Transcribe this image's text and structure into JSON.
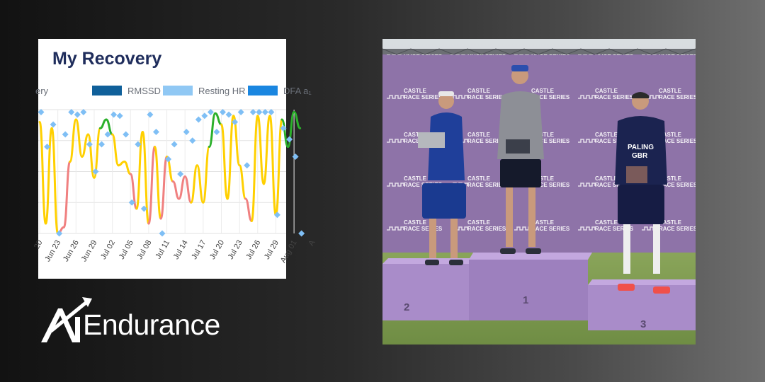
{
  "card": {
    "title": "My Recovery",
    "legend": [
      {
        "label": "ery",
        "color": ""
      },
      {
        "label": "RMSSD",
        "color": "#10609a"
      },
      {
        "label": "Resting HR",
        "color": "#90c8f4"
      },
      {
        "label": "DFA a₁",
        "color": "#1a86e0"
      }
    ]
  },
  "chart_data": {
    "type": "line",
    "title": "My Recovery",
    "xlabel": "",
    "ylabel": "",
    "x_ticks": [
      "20",
      "Jun 23",
      "Jun 26",
      "Jun 29",
      "Jul 02",
      "Jul 05",
      "Jul 08",
      "Jul 11",
      "Jul 14",
      "Jul 17",
      "Jul 20",
      "Jul 23",
      "Jul 26",
      "Jul 29",
      "Aug 01",
      "A"
    ],
    "x": [
      "Jun 20",
      "Jun 21",
      "Jun 22",
      "Jun 23",
      "Jun 24",
      "Jun 25",
      "Jun 26",
      "Jun 27",
      "Jun 28",
      "Jun 29",
      "Jun 30",
      "Jul 01",
      "Jul 02",
      "Jul 03",
      "Jul 04",
      "Jul 05",
      "Jul 06",
      "Jul 07",
      "Jul 08",
      "Jul 09",
      "Jul 10",
      "Jul 11",
      "Jul 12",
      "Jul 13",
      "Jul 14",
      "Jul 15",
      "Jul 16",
      "Jul 17",
      "Jul 18",
      "Jul 19",
      "Jul 20",
      "Jul 21",
      "Jul 22",
      "Jul 23",
      "Jul 24",
      "Jul 25",
      "Jul 26",
      "Jul 27",
      "Jul 28",
      "Jul 29",
      "Jul 30",
      "Jul 31",
      "Aug 01",
      "Aug 02"
    ],
    "ylim": [
      0,
      100
    ],
    "grid": true,
    "series": [
      {
        "name": "Recovery",
        "values": [
          90,
          8,
          85,
          0,
          5,
          58,
          92,
          62,
          80,
          45,
          85,
          92,
          80,
          55,
          58,
          48,
          20,
          82,
          8,
          70,
          12,
          62,
          42,
          28,
          46,
          25,
          55,
          25,
          70,
          97,
          88,
          28,
          95,
          55,
          28,
          10,
          95,
          40,
          95,
          15,
          92,
          70,
          98,
          85
        ],
        "zone_colors": {
          "low": "#f08080",
          "mid": "#ffd000",
          "high": "#2bb02b"
        }
      },
      {
        "name": "Resting HR",
        "values": [
          98,
          70,
          88,
          0,
          80,
          98,
          96,
          98,
          72,
          50,
          72,
          80,
          96,
          95,
          80,
          25,
          72,
          20,
          96,
          82,
          0,
          60,
          72,
          48,
          82,
          75,
          92,
          95,
          98,
          82,
          98,
          96,
          90,
          98,
          55,
          98,
          98,
          98,
          98,
          15,
          85,
          76,
          62,
          0
        ],
        "color": "#7fbff5"
      }
    ]
  },
  "logo": {
    "text": "Endurance",
    "mark": "AI"
  },
  "photo": {
    "banner_text": "CASTLE RACE SERIES",
    "podium_numbers": [
      "2",
      "1",
      "3"
    ],
    "kit_text": [
      "PALING",
      "GBR"
    ]
  }
}
